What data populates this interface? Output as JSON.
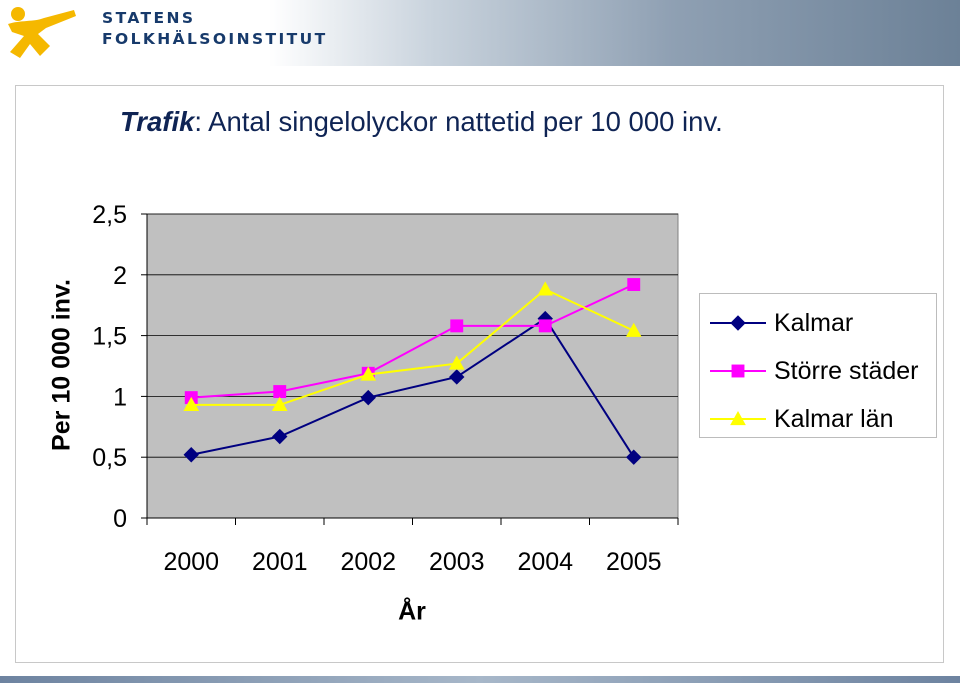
{
  "header": {
    "org_line1": "STATENS",
    "org_line2": "FOLKHÄLSOINSTITUT",
    "logo_icon": "running-figure-logo-icon",
    "logo_color": "#f5b800",
    "brand_color": "#173a6b"
  },
  "title": {
    "italic_part": "Trafik",
    "rest": ": Antal singelolyckor nattetid per 10 000 inv."
  },
  "chart_data": {
    "type": "line",
    "title": "Trafik: Antal singelolyckor nattetid per 10 000 inv.",
    "xlabel": "År",
    "ylabel": "Per 10 000 inv.",
    "categories": [
      "2000",
      "2001",
      "2002",
      "2003",
      "2004",
      "2005"
    ],
    "ylim": [
      0,
      2.5
    ],
    "yticks": [
      "0",
      "0,5",
      "1",
      "1,5",
      "2",
      "2,5"
    ],
    "grid": true,
    "plot_background": "#c0c0c0",
    "legend_position": "right",
    "series": [
      {
        "name": "Kalmar",
        "values": [
          0.52,
          0.67,
          0.99,
          1.16,
          1.64,
          0.5
        ],
        "color": "#000080",
        "marker": "diamond"
      },
      {
        "name": "Större städer",
        "values": [
          0.99,
          1.04,
          1.19,
          1.58,
          1.58,
          1.92
        ],
        "color": "#ff00ff",
        "marker": "square"
      },
      {
        "name": "Kalmar län",
        "values": [
          0.93,
          0.93,
          1.18,
          1.27,
          1.88,
          1.54
        ],
        "color": "#ffff00",
        "marker": "triangle"
      }
    ]
  }
}
